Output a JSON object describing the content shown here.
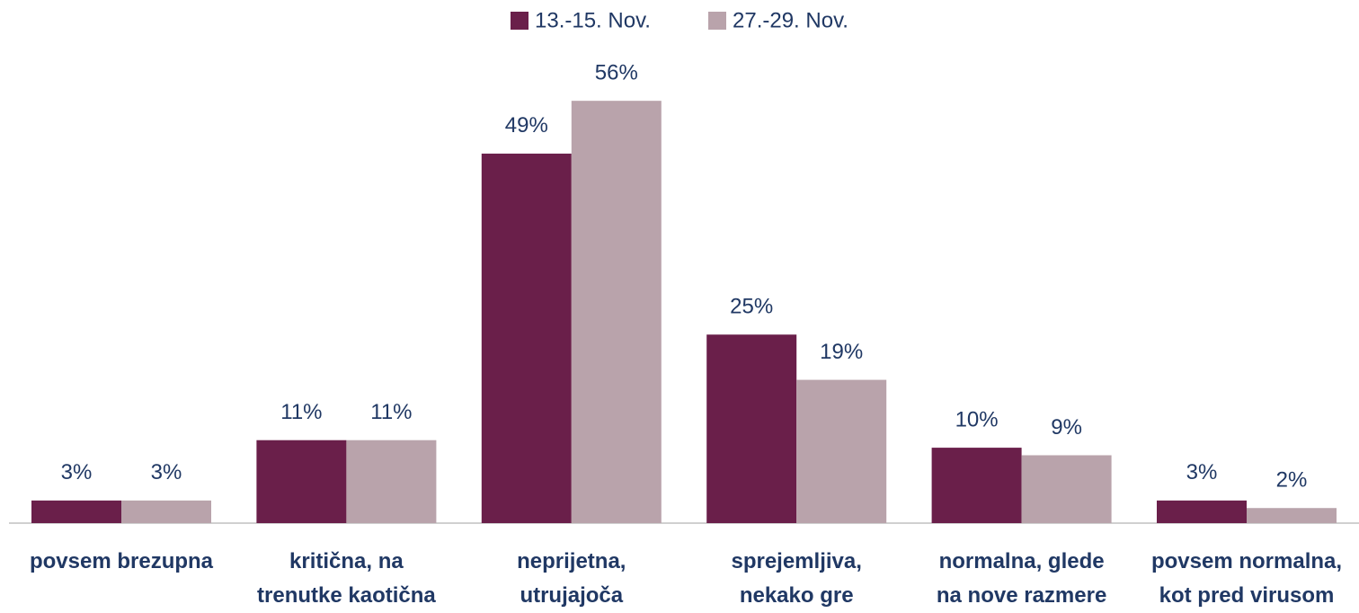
{
  "chart_data": {
    "type": "bar",
    "categories": [
      "povsem brezupna",
      "kritična, na\ntrenutke kaotična",
      "neprijetna,\nutrujajoča",
      "sprejemljiva,\nnekako gre",
      "normalna, glede\nna nove razmere",
      "povsem normalna,\nkot pred virusom"
    ],
    "series": [
      {
        "name": "13.-15. Nov.",
        "color": "#6a1f4a",
        "values": [
          3,
          11,
          49,
          25,
          10,
          3
        ],
        "value_labels": [
          "3%",
          "11%",
          "49%",
          "25%",
          "10%",
          "3%"
        ]
      },
      {
        "name": "27.-29. Nov.",
        "color": "#b9a3ab",
        "values": [
          3,
          11,
          56,
          19,
          9,
          2
        ],
        "value_labels": [
          "3%",
          "11%",
          "56%",
          "19%",
          "9%",
          "2%"
        ]
      }
    ],
    "legend": "top"
  }
}
